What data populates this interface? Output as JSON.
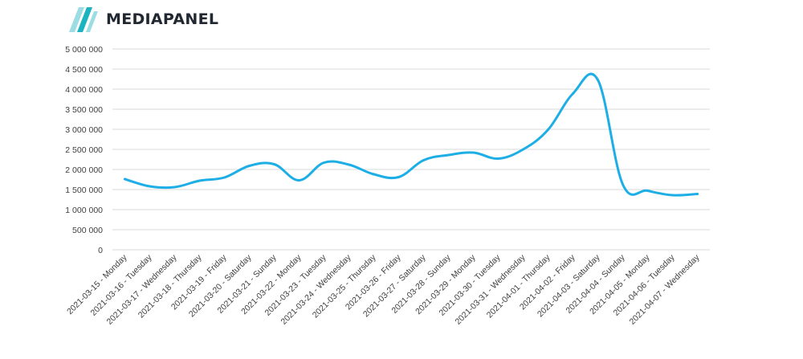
{
  "brand": {
    "name": "MEDIAPANEL",
    "colors": {
      "mark_light": "#9bdde2",
      "mark_dark": "#1cb3c0",
      "text": "#222831"
    }
  },
  "chart_data": {
    "type": "line",
    "title": "",
    "xlabel": "",
    "ylabel": "",
    "ylim": [
      0,
      5000000
    ],
    "y_ticks": [
      {
        "value": 0,
        "label": "0"
      },
      {
        "value": 500000,
        "label": "500 000"
      },
      {
        "value": 1000000,
        "label": "1 000 000"
      },
      {
        "value": 1500000,
        "label": "1 500 000"
      },
      {
        "value": 2000000,
        "label": "2 000 000"
      },
      {
        "value": 2500000,
        "label": "2 500 000"
      },
      {
        "value": 3000000,
        "label": "3 000 000"
      },
      {
        "value": 3500000,
        "label": "3 500 000"
      },
      {
        "value": 4000000,
        "label": "4 000 000"
      },
      {
        "value": 4500000,
        "label": "4 500 000"
      },
      {
        "value": 5000000,
        "label": "5 000 000"
      }
    ],
    "grid": true,
    "line_color": "#1eaee6",
    "categories": [
      "2021-03-15 - Monday",
      "2021-03-16 - Tuesday",
      "2021-03-17 - Wednesday",
      "2021-03-18 - Thursday",
      "2021-03-19 - Friday",
      "2021-03-20 - Saturday",
      "2021-03-21 - Sunday",
      "2021-03-22 - Monday",
      "2021-03-23 - Tuesday",
      "2021-03-24 - Wednesday",
      "2021-03-25 - Thursday",
      "2021-03-26 - Friday",
      "2021-03-27 - Saturday",
      "2021-03-28 - Sunday",
      "2021-03-29 - Monday",
      "2021-03-30 - Tuesday",
      "2021-03-31 - Wednesday",
      "2021-04-01 - Thursday",
      "2021-04-02 - Friday",
      "2021-04-03 - Saturday",
      "2021-04-04 - Sunday",
      "2021-04-05 - Monday",
      "2021-04-06 - Tuesday",
      "2021-04-07 - Wednesday"
    ],
    "series": [
      {
        "values": [
          1760000,
          1580000,
          1560000,
          1720000,
          1800000,
          2090000,
          2130000,
          1730000,
          2170000,
          2120000,
          1880000,
          1810000,
          2230000,
          2360000,
          2420000,
          2270000,
          2500000,
          2990000,
          3890000,
          4230000,
          1630000,
          1470000,
          1360000,
          1390000
        ]
      }
    ]
  }
}
